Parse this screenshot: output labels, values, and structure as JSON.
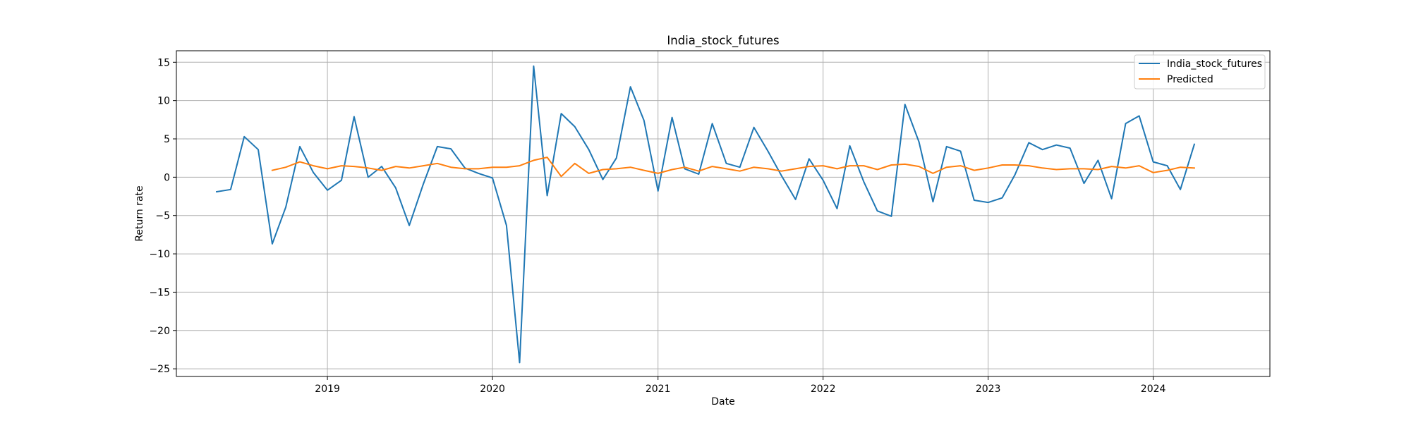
{
  "chart_data": {
    "type": "line",
    "title": "India_stock_futures",
    "xlabel": "Date",
    "ylabel": "Return rate",
    "x_ticks": [
      "2019",
      "2020",
      "2021",
      "2022",
      "2023",
      "2024"
    ],
    "y_ticks": [
      15,
      10,
      5,
      0,
      -5,
      -10,
      -15,
      -20,
      -25
    ],
    "y_tick_labels": [
      "15",
      "10",
      "5",
      "0",
      "−5",
      "−10",
      "−15",
      "−20",
      "−25"
    ],
    "xlim": [
      "2018-02-01",
      "2024-09-15"
    ],
    "ylim": [
      -26,
      16.5
    ],
    "grid": true,
    "legend_position": "upper right",
    "series": [
      {
        "name": "India_stock_futures",
        "color": "#1f77b4",
        "points": [
          [
            "2018-05-01",
            -1.9
          ],
          [
            "2018-06-01",
            -1.6
          ],
          [
            "2018-07-01",
            5.3
          ],
          [
            "2018-08-01",
            3.6
          ],
          [
            "2018-09-01",
            -8.7
          ],
          [
            "2018-10-01",
            -3.9
          ],
          [
            "2018-11-01",
            4.0
          ],
          [
            "2018-12-01",
            0.6
          ],
          [
            "2019-01-01",
            -1.7
          ],
          [
            "2019-02-01",
            -0.4
          ],
          [
            "2019-03-01",
            7.9
          ],
          [
            "2019-04-01",
            0.0
          ],
          [
            "2019-05-01",
            1.4
          ],
          [
            "2019-06-01",
            -1.4
          ],
          [
            "2019-07-01",
            -6.3
          ],
          [
            "2019-08-01",
            -0.9
          ],
          [
            "2019-09-01",
            4.0
          ],
          [
            "2019-10-01",
            3.7
          ],
          [
            "2019-11-01",
            1.2
          ],
          [
            "2019-12-01",
            0.5
          ],
          [
            "2020-01-01",
            -0.1
          ],
          [
            "2020-02-01",
            -6.3
          ],
          [
            "2020-03-01",
            -24.2
          ],
          [
            "2020-04-01",
            14.5
          ],
          [
            "2020-05-01",
            -2.4
          ],
          [
            "2020-06-01",
            8.3
          ],
          [
            "2020-07-01",
            6.6
          ],
          [
            "2020-08-01",
            3.6
          ],
          [
            "2020-09-01",
            -0.3
          ],
          [
            "2020-10-01",
            2.5
          ],
          [
            "2020-11-01",
            11.8
          ],
          [
            "2020-12-01",
            7.4
          ],
          [
            "2021-01-01",
            -1.8
          ],
          [
            "2021-02-01",
            7.8
          ],
          [
            "2021-03-01",
            1.1
          ],
          [
            "2021-04-01",
            0.4
          ],
          [
            "2021-05-01",
            7.0
          ],
          [
            "2021-06-01",
            1.8
          ],
          [
            "2021-07-01",
            1.3
          ],
          [
            "2021-08-01",
            6.5
          ],
          [
            "2021-09-01",
            3.4
          ],
          [
            "2021-10-01",
            0.2
          ],
          [
            "2021-11-01",
            -2.9
          ],
          [
            "2021-12-01",
            2.4
          ],
          [
            "2022-01-01",
            -0.4
          ],
          [
            "2022-02-01",
            -4.1
          ],
          [
            "2022-03-01",
            4.1
          ],
          [
            "2022-04-01",
            -0.6
          ],
          [
            "2022-05-01",
            -4.4
          ],
          [
            "2022-06-01",
            -5.1
          ],
          [
            "2022-07-01",
            9.5
          ],
          [
            "2022-08-01",
            4.6
          ],
          [
            "2022-09-01",
            -3.2
          ],
          [
            "2022-10-01",
            4.0
          ],
          [
            "2022-11-01",
            3.4
          ],
          [
            "2022-12-01",
            -3.0
          ],
          [
            "2023-01-01",
            -3.3
          ],
          [
            "2023-02-01",
            -2.7
          ],
          [
            "2023-03-01",
            0.3
          ],
          [
            "2023-04-01",
            4.5
          ],
          [
            "2023-05-01",
            3.6
          ],
          [
            "2023-06-01",
            4.2
          ],
          [
            "2023-07-01",
            3.8
          ],
          [
            "2023-08-01",
            -0.8
          ],
          [
            "2023-09-01",
            2.2
          ],
          [
            "2023-10-01",
            -2.8
          ],
          [
            "2023-11-01",
            7.0
          ],
          [
            "2023-12-01",
            8.0
          ],
          [
            "2024-01-01",
            2.0
          ],
          [
            "2024-02-01",
            1.5
          ],
          [
            "2024-03-01",
            -1.6
          ],
          [
            "2024-04-01",
            4.3
          ]
        ]
      },
      {
        "name": "Predicted",
        "color": "#ff7f0e",
        "points": [
          [
            "2018-09-01",
            0.9
          ],
          [
            "2018-10-01",
            1.3
          ],
          [
            "2018-11-01",
            2.0
          ],
          [
            "2018-12-01",
            1.5
          ],
          [
            "2019-01-01",
            1.1
          ],
          [
            "2019-02-01",
            1.5
          ],
          [
            "2019-03-01",
            1.4
          ],
          [
            "2019-04-01",
            1.2
          ],
          [
            "2019-05-01",
            0.9
          ],
          [
            "2019-06-01",
            1.4
          ],
          [
            "2019-07-01",
            1.2
          ],
          [
            "2019-08-01",
            1.5
          ],
          [
            "2019-09-01",
            1.8
          ],
          [
            "2019-10-01",
            1.3
          ],
          [
            "2019-11-01",
            1.1
          ],
          [
            "2019-12-01",
            1.1
          ],
          [
            "2020-01-01",
            1.3
          ],
          [
            "2020-02-01",
            1.3
          ],
          [
            "2020-03-01",
            1.5
          ],
          [
            "2020-04-01",
            2.2
          ],
          [
            "2020-05-01",
            2.6
          ],
          [
            "2020-06-01",
            0.1
          ],
          [
            "2020-07-01",
            1.8
          ],
          [
            "2020-08-01",
            0.5
          ],
          [
            "2020-09-01",
            1.0
          ],
          [
            "2020-10-01",
            1.1
          ],
          [
            "2020-11-01",
            1.3
          ],
          [
            "2020-12-01",
            0.9
          ],
          [
            "2021-01-01",
            0.5
          ],
          [
            "2021-02-01",
            1.0
          ],
          [
            "2021-03-01",
            1.3
          ],
          [
            "2021-04-01",
            0.8
          ],
          [
            "2021-05-01",
            1.4
          ],
          [
            "2021-06-01",
            1.1
          ],
          [
            "2021-07-01",
            0.8
          ],
          [
            "2021-08-01",
            1.3
          ],
          [
            "2021-09-01",
            1.1
          ],
          [
            "2021-10-01",
            0.8
          ],
          [
            "2021-11-01",
            1.1
          ],
          [
            "2021-12-01",
            1.4
          ],
          [
            "2022-01-01",
            1.5
          ],
          [
            "2022-02-01",
            1.1
          ],
          [
            "2022-03-01",
            1.5
          ],
          [
            "2022-04-01",
            1.5
          ],
          [
            "2022-05-01",
            1.0
          ],
          [
            "2022-06-01",
            1.6
          ],
          [
            "2022-07-01",
            1.7
          ],
          [
            "2022-08-01",
            1.4
          ],
          [
            "2022-09-01",
            0.5
          ],
          [
            "2022-10-01",
            1.3
          ],
          [
            "2022-11-01",
            1.5
          ],
          [
            "2022-12-01",
            0.9
          ],
          [
            "2023-01-01",
            1.2
          ],
          [
            "2023-02-01",
            1.6
          ],
          [
            "2023-03-01",
            1.6
          ],
          [
            "2023-04-01",
            1.5
          ],
          [
            "2023-05-01",
            1.2
          ],
          [
            "2023-06-01",
            1.0
          ],
          [
            "2023-07-01",
            1.1
          ],
          [
            "2023-08-01",
            1.1
          ],
          [
            "2023-09-01",
            1.0
          ],
          [
            "2023-10-01",
            1.4
          ],
          [
            "2023-11-01",
            1.2
          ],
          [
            "2023-12-01",
            1.5
          ],
          [
            "2024-01-01",
            0.6
          ],
          [
            "2024-02-01",
            0.9
          ],
          [
            "2024-03-01",
            1.3
          ],
          [
            "2024-04-01",
            1.2
          ]
        ]
      }
    ]
  }
}
